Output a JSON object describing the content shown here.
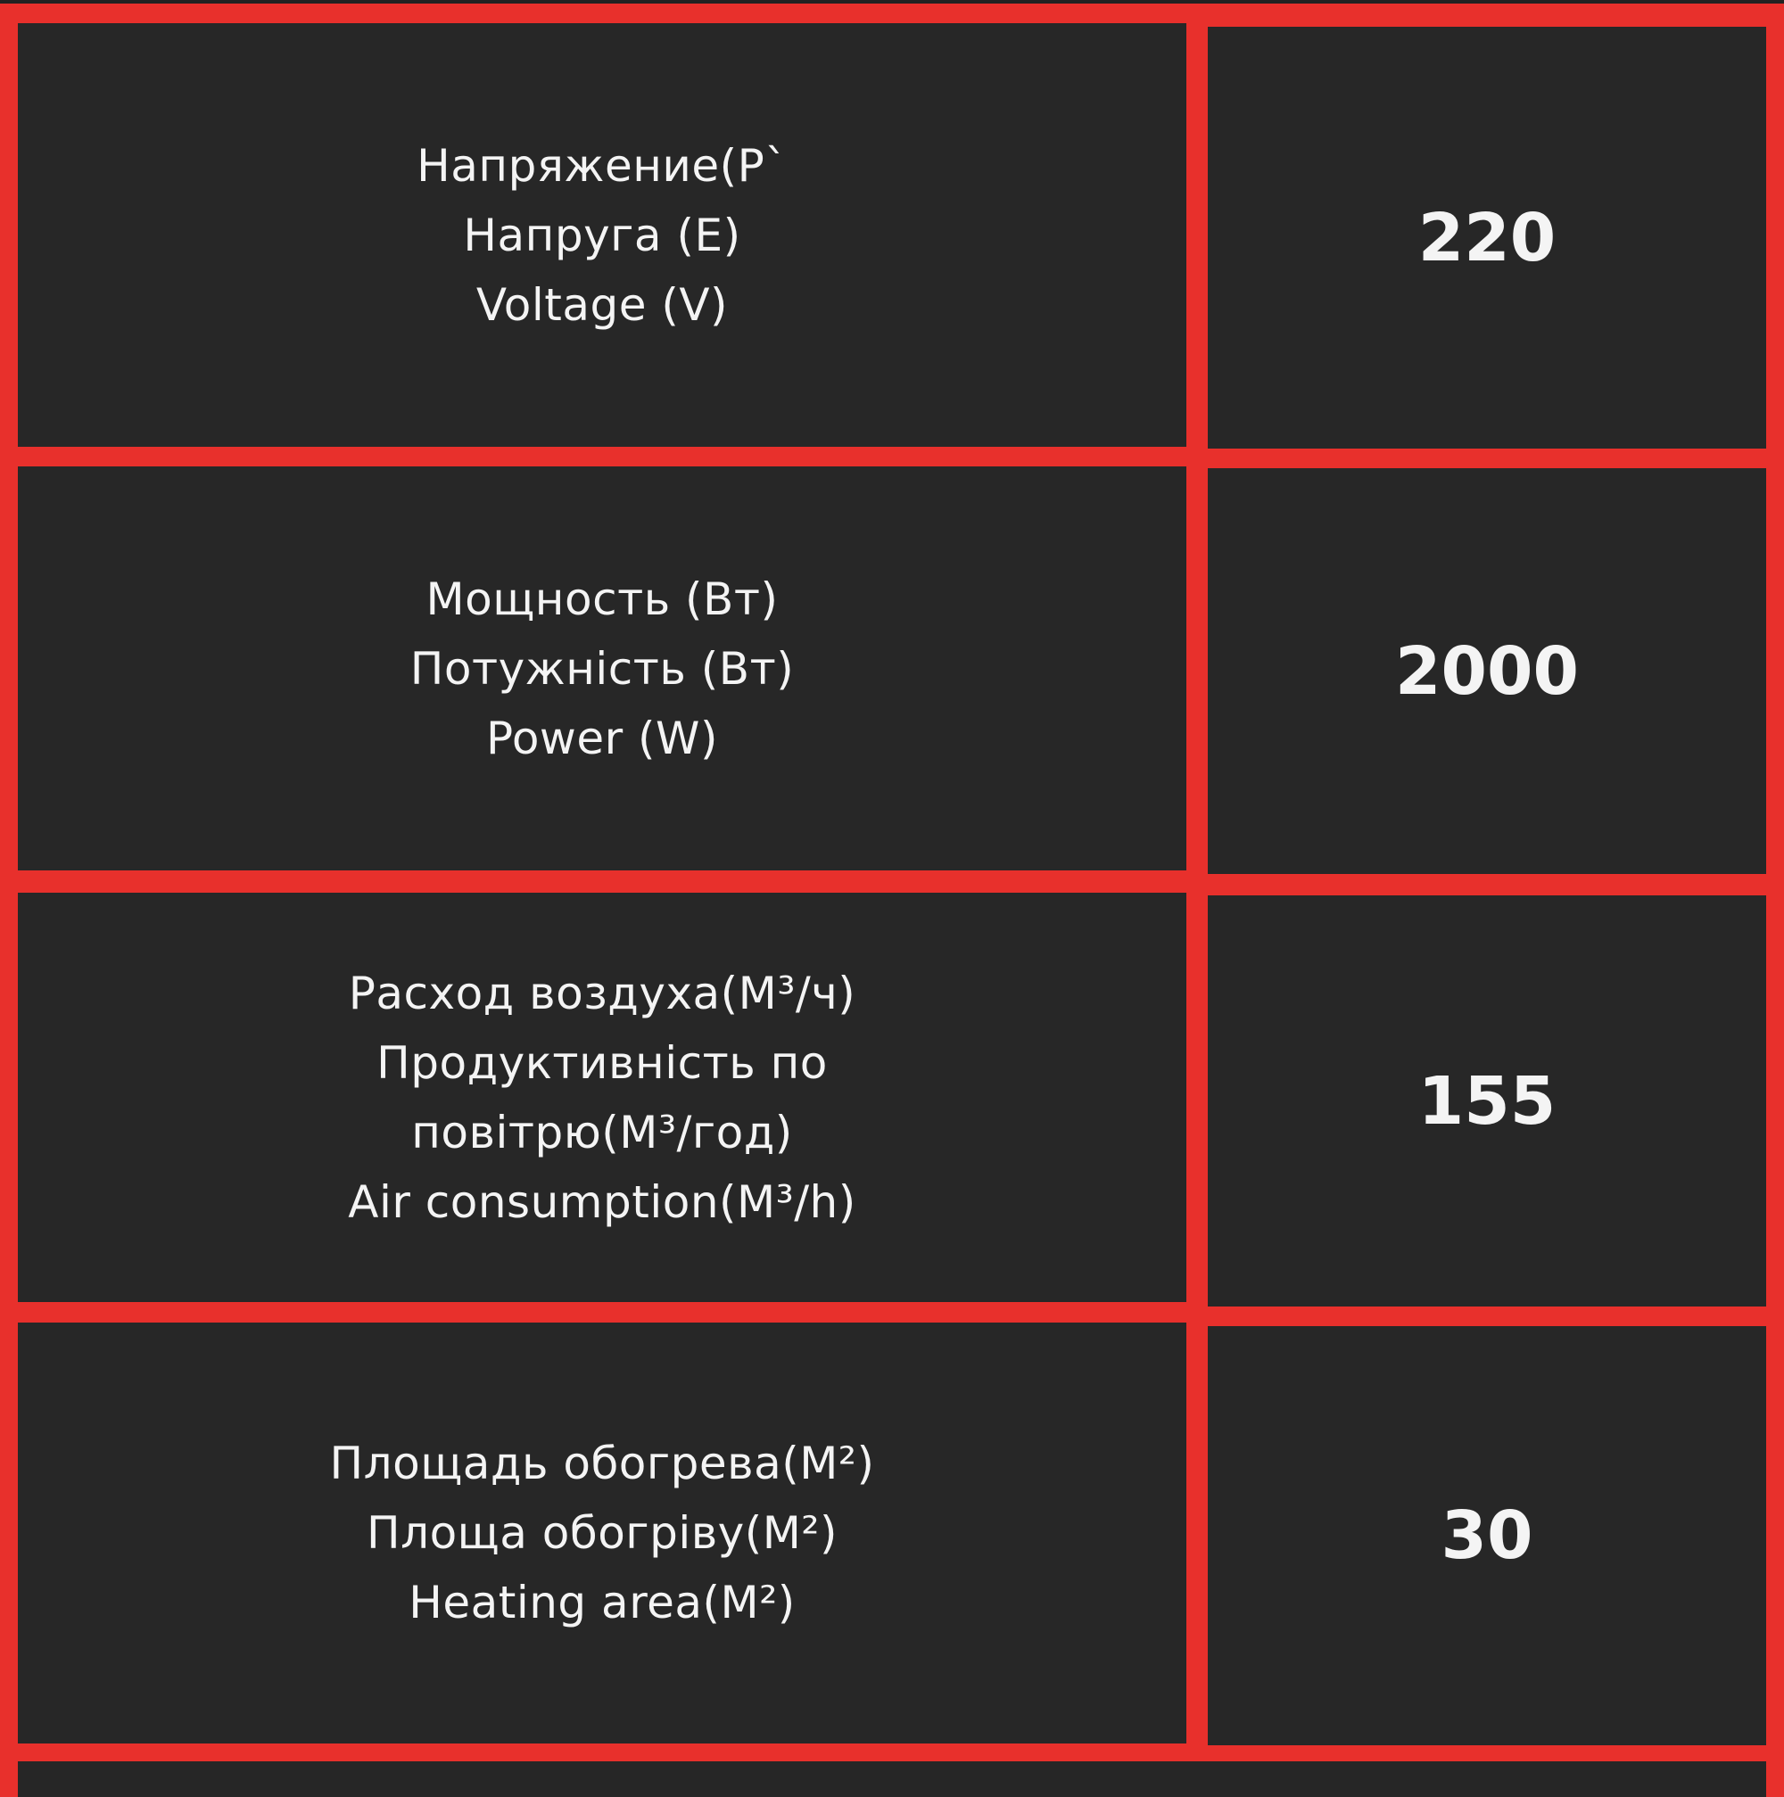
{
  "colors": {
    "border": "#e8302c",
    "cell_background": "#272727",
    "text": "#f4f4f4"
  },
  "specs": [
    {
      "label_ru": "Напряжение(Р`",
      "label_uk": "Напруга (Е)",
      "label_en": "Voltage (V)",
      "value": "220"
    },
    {
      "label_ru": "Мощность (Вт)",
      "label_uk": "Потужність (Вт)",
      "label_en": "Power (W)",
      "value": "2000"
    },
    {
      "label_ru": "Расход воздуха(М³/ч)",
      "label_uk": "Продуктивність по повітрю(М³/год)",
      "label_en": "Air consumption(M³/h)",
      "value": "155"
    },
    {
      "label_ru": "Площадь обогрева(М²)",
      "label_uk": "Площа обогріву(М²)",
      "label_en": "Heating area(M²)",
      "value": "30"
    }
  ]
}
